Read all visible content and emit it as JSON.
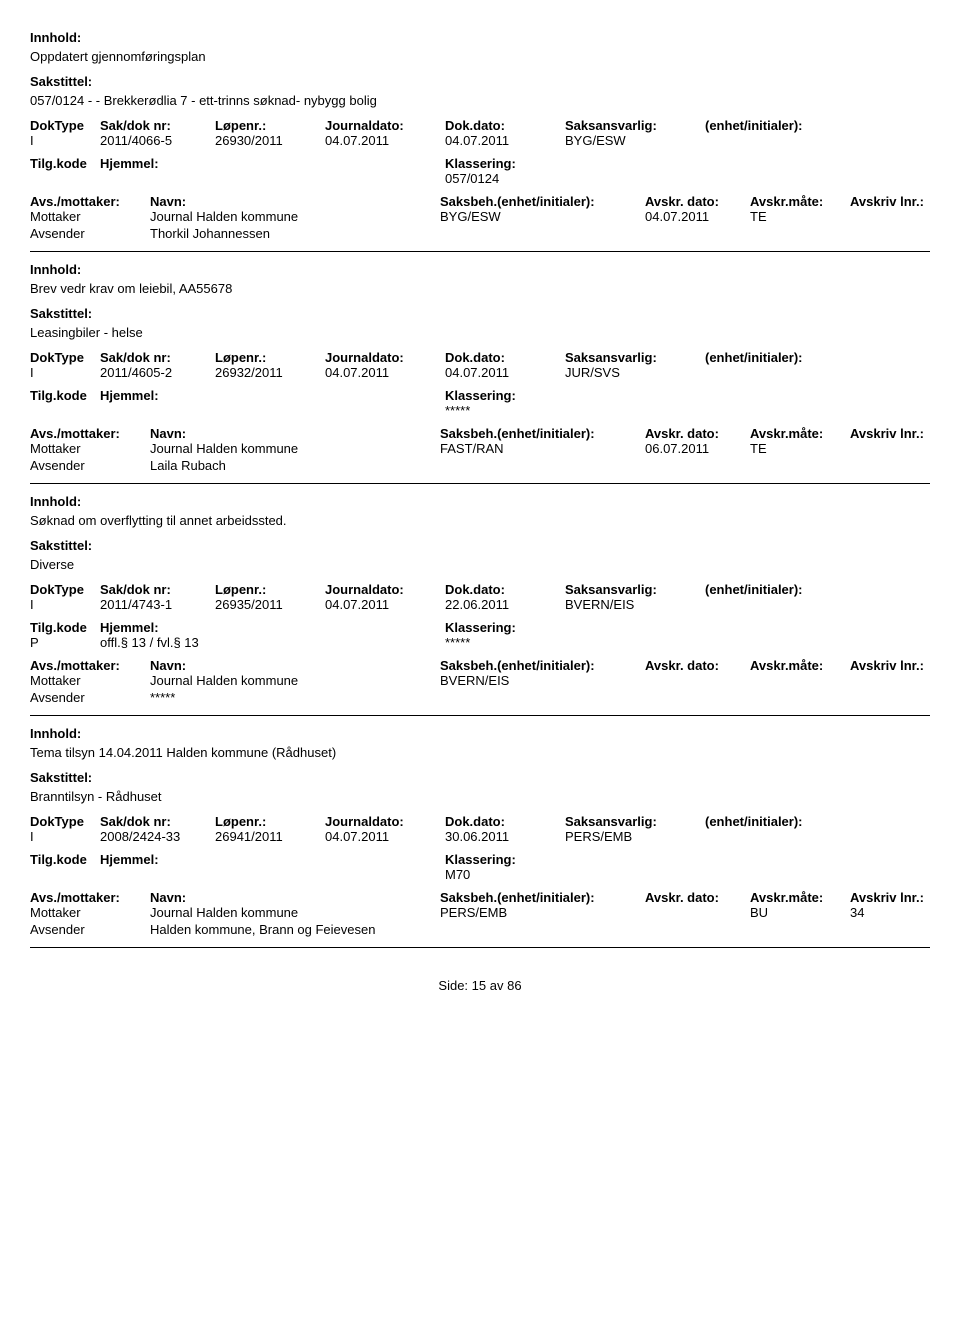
{
  "labels": {
    "innhold": "Innhold:",
    "sakstittel": "Sakstittel:",
    "doktype": "DokType",
    "sakdok": "Sak/dok nr:",
    "lopenr": "Løpenr.:",
    "journaldato": "Journaldato:",
    "dokdato": "Dok.dato:",
    "saksansvarlig": "Saksansvarlig:",
    "enhet": "(enhet/initialer):",
    "tilgkode": "Tilg.kode",
    "hjemmel": "Hjemmel:",
    "klassering": "Klassering:",
    "avsmottaker": "Avs./mottaker:",
    "navn": "Navn:",
    "saksbeh": "Saksbeh.(enhet/initialer):",
    "avskrdato": "Avskr. dato:",
    "avskrmate": "Avskr.måte:",
    "avskrlnr": "Avskriv lnr.:",
    "mottaker": "Mottaker",
    "avsender": "Avsender",
    "side": "Side:",
    "av": "av"
  },
  "records": [
    {
      "innhold": "Oppdatert gjennomføringsplan",
      "sakstittel": "057/0124 - - Brekkerødlia 7 - ett-trinns søknad- nybygg bolig",
      "doktype": "I",
      "sakdok": "2011/4066-5",
      "lopenr": "26930/2011",
      "jdato": "04.07.2011",
      "ddato": "04.07.2011",
      "saksansv": "BYG/ESW",
      "tilgkode": "",
      "hjemmel": "",
      "klassering": "057/0124",
      "parties": [
        {
          "role": "Mottaker",
          "navn": "Journal Halden kommune",
          "saksbeh": "BYG/ESW",
          "avskrdato": "04.07.2011",
          "avskrmate": "TE",
          "avskrlnr": ""
        },
        {
          "role": "Avsender",
          "navn": "Thorkil Johannessen",
          "saksbeh": "",
          "avskrdato": "",
          "avskrmate": "",
          "avskrlnr": ""
        }
      ]
    },
    {
      "innhold": "Brev vedr krav om leiebil, AA55678",
      "sakstittel": "Leasingbiler - helse",
      "doktype": "I",
      "sakdok": "2011/4605-2",
      "lopenr": "26932/2011",
      "jdato": "04.07.2011",
      "ddato": "04.07.2011",
      "saksansv": "JUR/SVS",
      "tilgkode": "",
      "hjemmel": "",
      "klassering": "*****",
      "parties": [
        {
          "role": "Mottaker",
          "navn": "Journal Halden kommune",
          "saksbeh": "FAST/RAN",
          "avskrdato": "06.07.2011",
          "avskrmate": "TE",
          "avskrlnr": ""
        },
        {
          "role": "Avsender",
          "navn": "Laila Rubach",
          "saksbeh": "",
          "avskrdato": "",
          "avskrmate": "",
          "avskrlnr": ""
        }
      ]
    },
    {
      "innhold": "Søknad om overflytting til annet arbeidssted.",
      "sakstittel": "Diverse",
      "doktype": "I",
      "sakdok": "2011/4743-1",
      "lopenr": "26935/2011",
      "jdato": "04.07.2011",
      "ddato": "22.06.2011",
      "saksansv": "BVERN/EIS",
      "tilgkode": "P",
      "hjemmel": "offl.§ 13 / fvl.§ 13",
      "klassering": "*****",
      "parties": [
        {
          "role": "Mottaker",
          "navn": "Journal Halden kommune",
          "saksbeh": "BVERN/EIS",
          "avskrdato": "",
          "avskrmate": "",
          "avskrlnr": ""
        },
        {
          "role": "Avsender",
          "navn": "*****",
          "saksbeh": "",
          "avskrdato": "",
          "avskrmate": "",
          "avskrlnr": ""
        }
      ]
    },
    {
      "innhold": "Tema tilsyn 14.04.2011 Halden kommune (Rådhuset)",
      "sakstittel": "Branntilsyn - Rådhuset",
      "doktype": "I",
      "sakdok": "2008/2424-33",
      "lopenr": "26941/2011",
      "jdato": "04.07.2011",
      "ddato": "30.06.2011",
      "saksansv": "PERS/EMB",
      "tilgkode": "",
      "hjemmel": "",
      "klassering": "M70",
      "parties": [
        {
          "role": "Mottaker",
          "navn": "Journal Halden kommune",
          "saksbeh": "PERS/EMB",
          "avskrdato": "",
          "avskrmate": "BU",
          "avskrlnr": "34"
        },
        {
          "role": "Avsender",
          "navn": "Halden kommune, Brann og Feievesen",
          "saksbeh": "",
          "avskrdato": "",
          "avskrmate": "",
          "avskrlnr": ""
        }
      ]
    }
  ],
  "page": {
    "current": "15",
    "total": "86"
  }
}
